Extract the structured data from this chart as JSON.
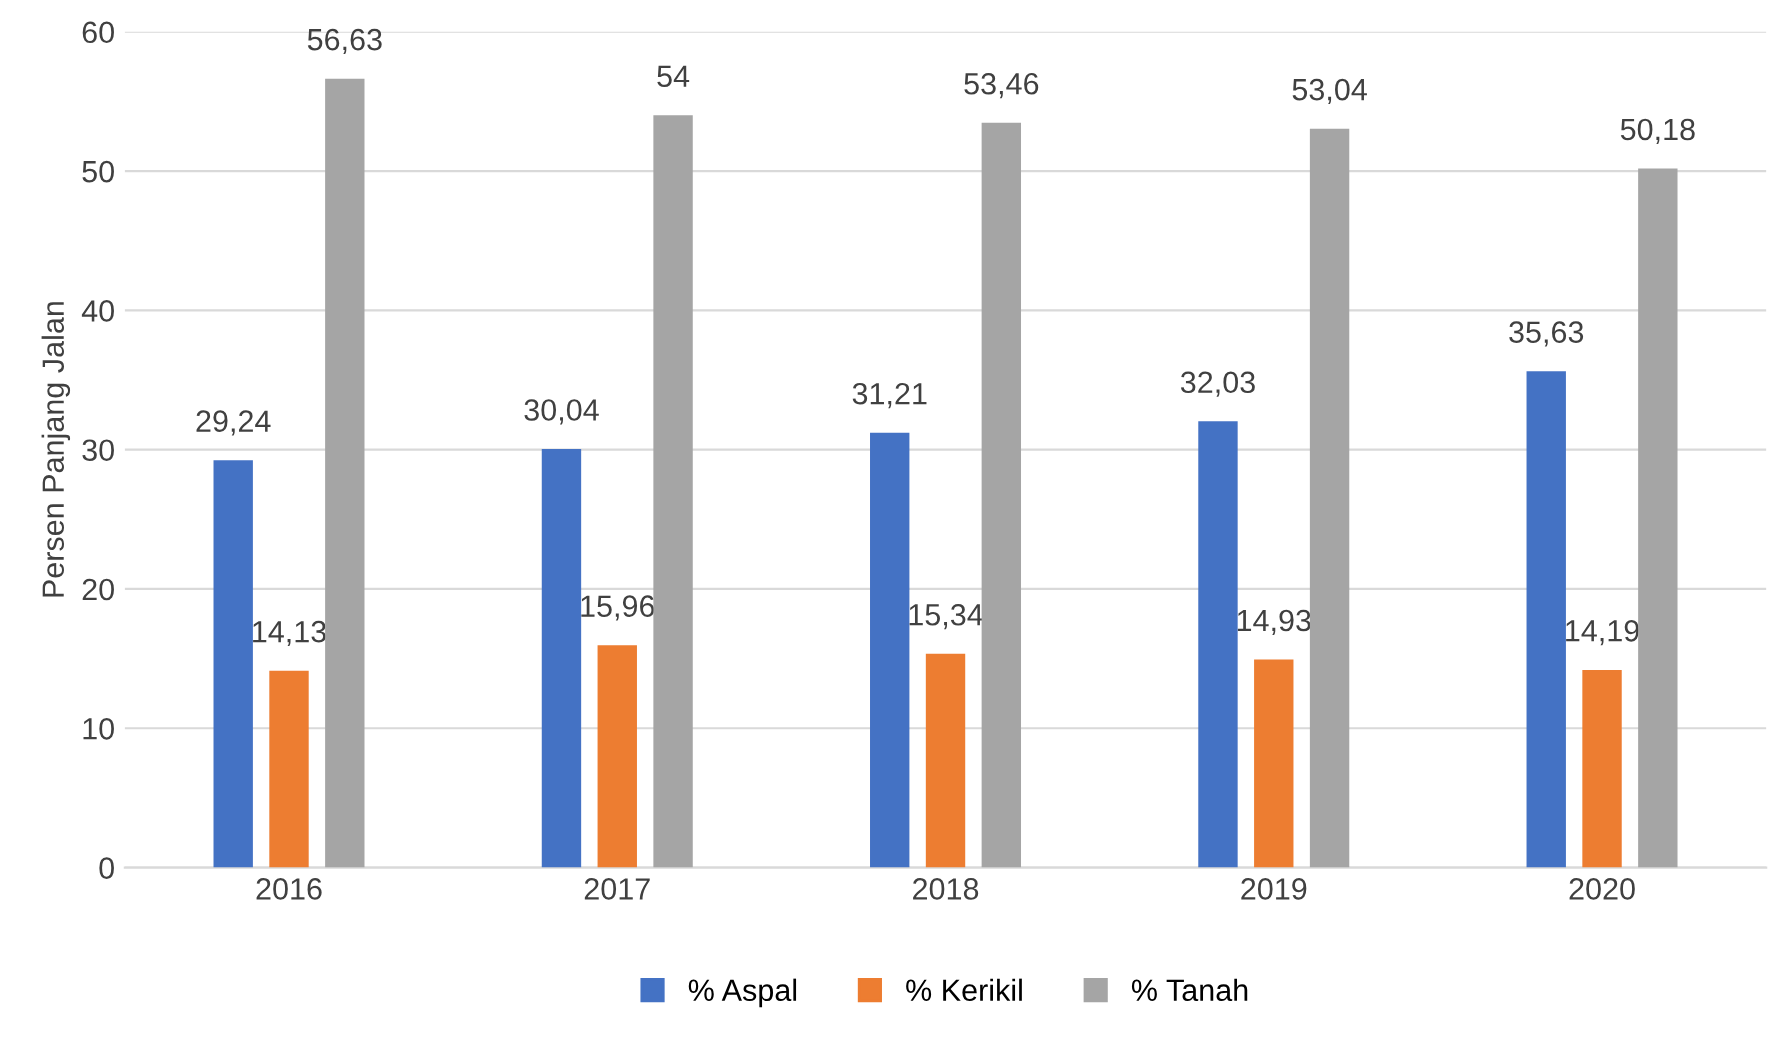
{
  "chart_data": {
    "type": "bar",
    "ylabel": "Persen Panjang Jalan",
    "categories": [
      "2016",
      "2017",
      "2018",
      "2019",
      "2020"
    ],
    "series": [
      {
        "name": "% Aspal",
        "color": "#4472c4",
        "values": [
          29.24,
          30.04,
          31.21,
          32.03,
          35.63
        ],
        "value_labels": [
          "29,24",
          "30,04",
          "31,21",
          "32,03",
          "35,63"
        ]
      },
      {
        "name": "% Kerikil",
        "color": "#ed7d31",
        "values": [
          14.13,
          15.96,
          15.34,
          14.93,
          14.19
        ],
        "value_labels": [
          "14,13",
          "15,96",
          "15,34",
          "14,93",
          "14,19"
        ]
      },
      {
        "name": "% Tanah",
        "color": "#a5a5a5",
        "values": [
          56.63,
          54,
          53.46,
          53.04,
          50.18
        ],
        "value_labels": [
          "56,63",
          "54",
          "53,46",
          "53,04",
          "50,18"
        ]
      }
    ],
    "ylim": [
      0,
      60
    ],
    "yticks": [
      0,
      10,
      20,
      30,
      40,
      50,
      60
    ],
    "grid": "y",
    "legend": "bottom"
  }
}
